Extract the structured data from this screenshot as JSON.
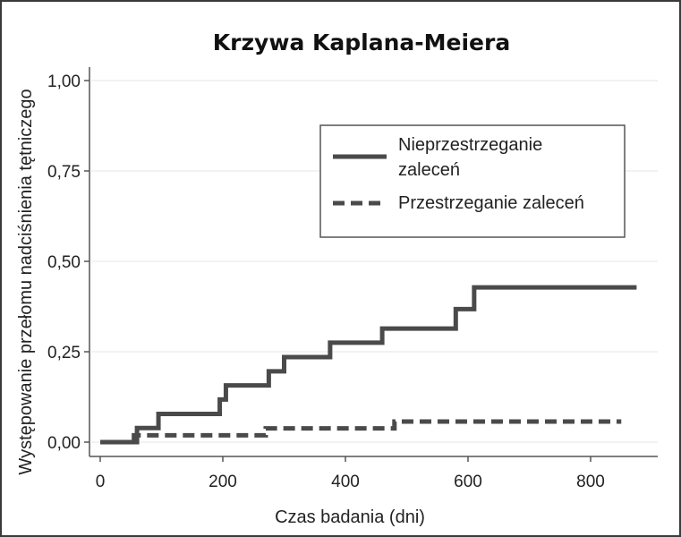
{
  "chart_data": {
    "type": "line",
    "title": "Krzywa Kaplana-Meiera",
    "xlabel": "Czas badania (dni)",
    "ylabel": "Występowanie przełomu nadciśnienia tętniczego",
    "xlim": [
      0,
      900
    ],
    "ylim": [
      0,
      1
    ],
    "xticks": [
      0,
      200,
      400,
      600,
      800
    ],
    "xtick_labels": [
      "0",
      "200",
      "400",
      "600",
      "800"
    ],
    "yticks": [
      0,
      0.25,
      0.5,
      0.75,
      1
    ],
    "ytick_labels": [
      "0,00",
      "0,25",
      "0,50",
      "0,75",
      "1,00"
    ],
    "grid": true,
    "legend_position": "top-right",
    "series": [
      {
        "name": "Nieprzestrzeganie zaleceń",
        "line_label": [
          "Nieprzestrzeganie",
          "zaleceń"
        ],
        "style": "solid",
        "color": "#4a4a4a",
        "x": [
          0,
          60,
          95,
          195,
          205,
          275,
          300,
          375,
          460,
          580,
          610,
          875
        ],
        "y": [
          0,
          0.039,
          0.078,
          0.118,
          0.157,
          0.196,
          0.235,
          0.275,
          0.314,
          0.368,
          0.428,
          0.428
        ]
      },
      {
        "name": "Przestrzeganie zaleceń",
        "line_label": [
          "Przestrzeganie zaleceń"
        ],
        "style": "dashed",
        "color": "#4a4a4a",
        "x": [
          0,
          55,
          270,
          480,
          850
        ],
        "y": [
          0,
          0.019,
          0.038,
          0.057,
          0.057
        ]
      }
    ]
  }
}
